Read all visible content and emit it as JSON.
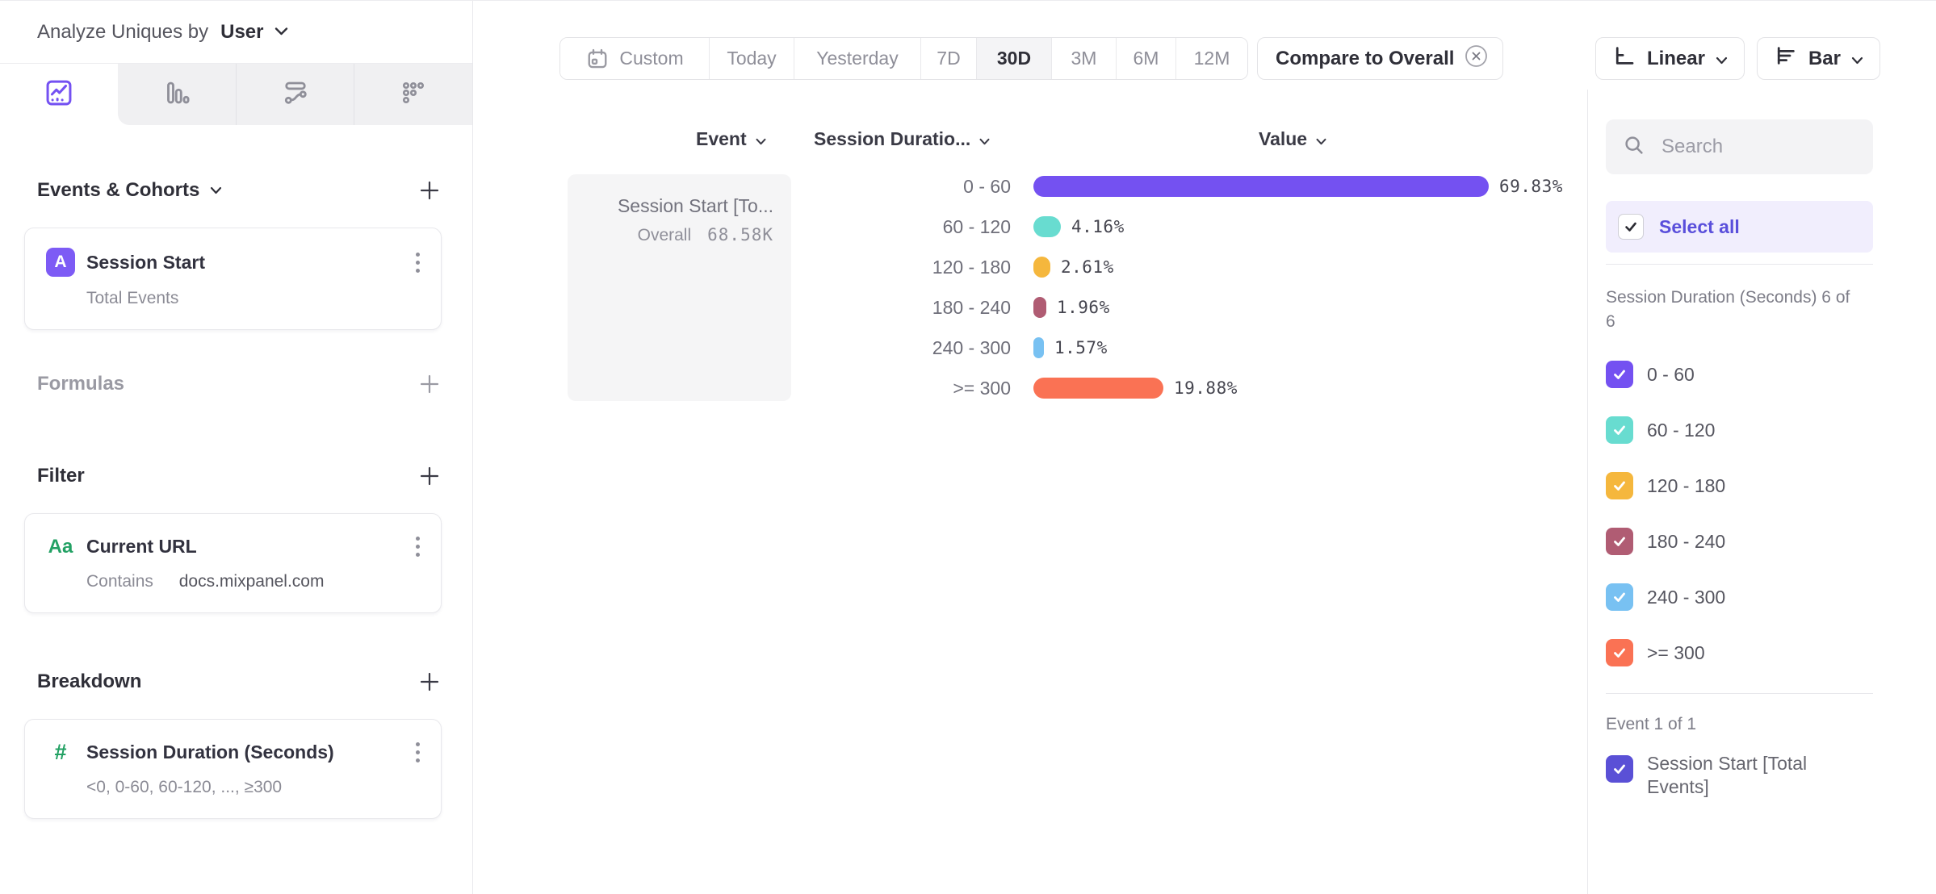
{
  "header": {
    "prefix": "Analyze Uniques by",
    "selected": "User"
  },
  "nav_tabs": [
    {
      "icon": "insights-chart-icon",
      "active": true
    },
    {
      "icon": "funnels-bars-icon",
      "active": false
    },
    {
      "icon": "flows-icon",
      "active": false
    },
    {
      "icon": "retention-dots-icon",
      "active": false
    }
  ],
  "builder": {
    "events_section": {
      "label": "Events & Cohorts",
      "add": "+",
      "card": {
        "badge": "A",
        "title": "Session Start",
        "subtitle": "Total Events"
      }
    },
    "formulas_section": {
      "label": "Formulas",
      "add": "+"
    },
    "filter_section": {
      "label": "Filter",
      "add": "+",
      "card": {
        "icon": "Aa",
        "title": "Current URL",
        "operator": "Contains",
        "value": "docs.mixpanel.com"
      }
    },
    "breakdown_section": {
      "label": "Breakdown",
      "add": "+",
      "card": {
        "icon": "#",
        "title": "Session Duration (Seconds)",
        "subtitle": "<0, 0-60, 60-120, ..., ≥300"
      }
    }
  },
  "toolbar": {
    "ranges": [
      "Custom",
      "Today",
      "Yesterday",
      "7D",
      "30D",
      "3M",
      "6M",
      "12M"
    ],
    "selected_range": "30D",
    "compare_label": "Compare to Overall",
    "line_type": "Linear",
    "chart_type": "Bar"
  },
  "table": {
    "columns": [
      "Event",
      "Session Duratio...",
      "Value"
    ],
    "event_cell": {
      "title": "Session Start [To...",
      "overall_label": "Overall",
      "overall_value": "68.58K"
    },
    "rows": [
      {
        "label": "0 - 60",
        "value": "69.83%"
      },
      {
        "label": "60 - 120",
        "value": "4.16%"
      },
      {
        "label": "120 - 180",
        "value": "2.61%"
      },
      {
        "label": "180 - 240",
        "value": "1.96%"
      },
      {
        "label": "240 - 300",
        "value": "1.57%"
      },
      {
        "label": ">= 300",
        "value": "19.88%"
      }
    ]
  },
  "chart_data": {
    "type": "bar",
    "orientation": "horizontal",
    "categories": [
      "0 - 60",
      "60 - 120",
      "120 - 180",
      "180 - 240",
      "240 - 300",
      ">= 300"
    ],
    "values": [
      69.83,
      4.16,
      2.61,
      1.96,
      1.57,
      19.88
    ],
    "unit": "%",
    "series_name": "Session Start [Total Events]",
    "overall_total": "68.58K",
    "colors": [
      "#7451f1",
      "#68dcd0",
      "#f5b73d",
      "#b05c73",
      "#78c1f2",
      "#fa7254"
    ],
    "xlim": [
      0,
      75
    ],
    "grid": false,
    "legend": "right-panel-checkboxes"
  },
  "right_panel": {
    "search_placeholder": "Search",
    "select_all_label": "Select all",
    "group_label": "Session Duration (Seconds) 6 of 6",
    "items": [
      {
        "label": "0 - 60",
        "color": "#7451f1",
        "checked": true
      },
      {
        "label": "60 - 120",
        "color": "#68dcd0",
        "checked": true
      },
      {
        "label": "120 - 180",
        "color": "#f5b73d",
        "checked": true
      },
      {
        "label": "180 - 240",
        "color": "#b05c73",
        "checked": true
      },
      {
        "label": "240 - 300",
        "color": "#78c1f2",
        "checked": true
      },
      {
        "label": ">= 300",
        "color": "#fa7254",
        "checked": true
      }
    ],
    "event_group_label": "Event 1 of 1",
    "event_item": {
      "label": "Session Start [Total Events]",
      "color": "#5a50d6",
      "checked": true
    }
  }
}
